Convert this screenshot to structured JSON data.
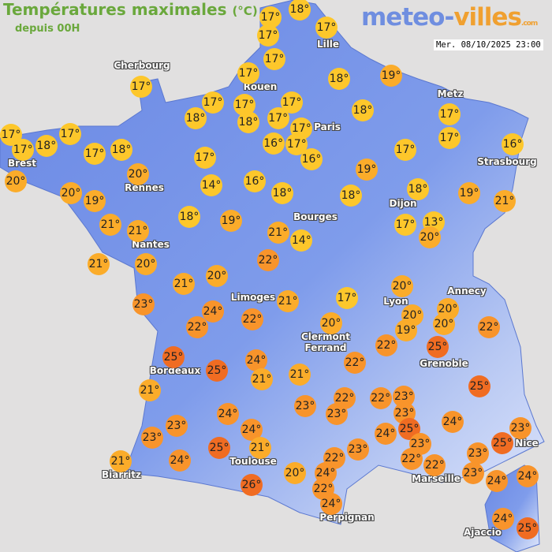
{
  "header": {
    "title": "Températures maximales",
    "unit": "(°C)",
    "subtitle": "depuis 00H",
    "logo_text": "meteo-villes.com",
    "logo_part1": "meteo-",
    "logo_part2": "villes",
    "logo_part3": ".com",
    "datetime": "Mer. 08/10/2025 23:00"
  },
  "colors": {
    "cool": "#fdc72b",
    "mild": "#fbac2a",
    "warm": "#f8942b",
    "hot": "#f06c22",
    "land": "#6f8de6",
    "sea": "#e1e0e0",
    "title": "#6aa83c"
  },
  "cities": [
    "Cherbourg",
    "Brest",
    "Rennes",
    "Nantes",
    "Rouen",
    "Paris",
    "Lille",
    "Metz",
    "Strasbourg",
    "Dijon",
    "Bourges",
    "Limoges",
    "Clermont\nFerrand",
    "Lyon",
    "Annecy",
    "Grenoble",
    "Bordeaux",
    "Toulouse",
    "Biarritz",
    "Marseille",
    "Nice",
    "Perpignan",
    "Ajaccio"
  ],
  "temperatures": [
    17,
    18,
    17,
    17,
    17,
    17,
    18,
    19,
    17,
    17,
    17,
    17,
    18,
    18,
    17,
    17,
    18,
    17,
    17,
    16,
    17,
    17,
    18,
    17,
    17,
    18,
    17,
    16,
    17,
    16,
    17,
    19,
    20,
    20,
    19,
    20,
    14,
    16,
    18,
    18,
    18,
    19,
    21,
    21,
    21,
    18,
    19,
    21,
    14,
    17,
    13,
    20,
    21,
    20,
    22,
    21,
    20,
    23,
    24,
    22,
    22,
    21,
    17,
    20,
    20,
    19,
    20,
    20,
    22,
    20,
    22,
    25,
    25,
    25,
    24,
    21,
    21,
    22,
    21,
    25,
    24,
    24,
    23,
    23,
    24,
    25,
    21,
    21,
    23,
    22,
    23,
    22,
    23,
    23,
    24,
    25,
    24,
    23,
    22,
    22,
    23,
    25,
    23,
    23,
    23,
    22,
    26,
    20,
    24,
    22,
    24,
    24,
    24,
    24,
    25
  ],
  "unit_symbol": "°"
}
